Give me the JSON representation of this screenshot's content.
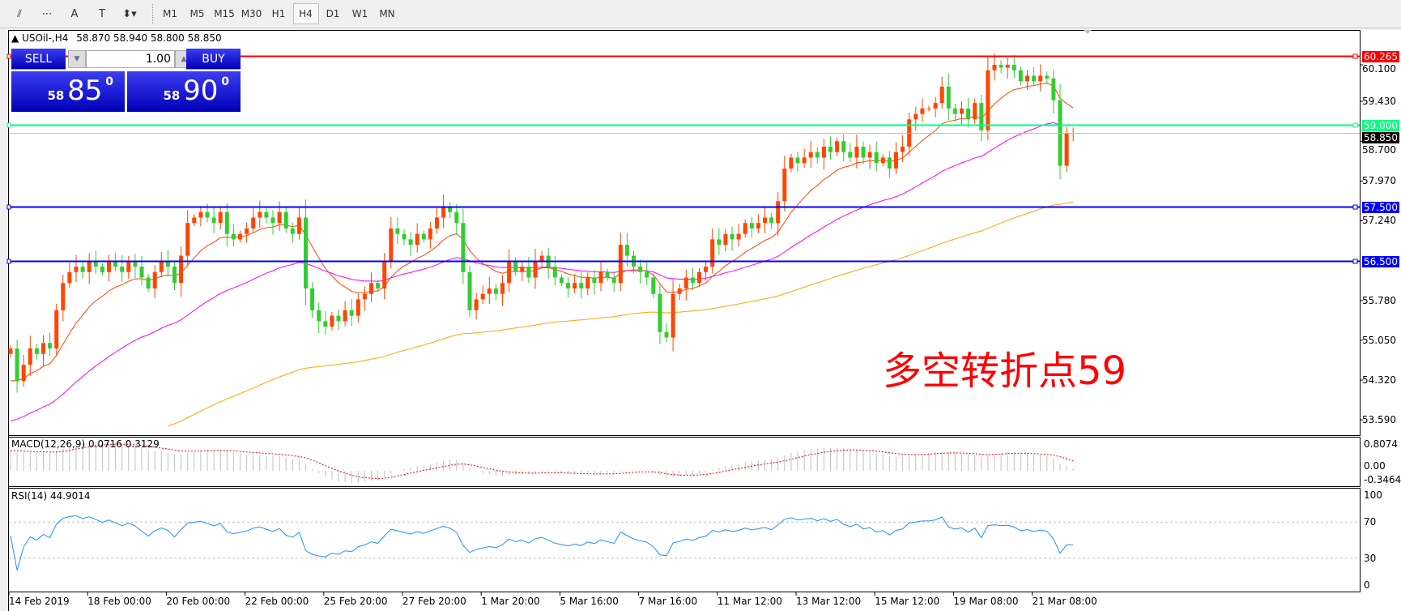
{
  "toolbar": {
    "tools": [
      {
        "icon": "fibonacci-expansion-icon",
        "glyph": "⫽"
      },
      {
        "icon": "fibonacci-fan-icon",
        "glyph": "⋯"
      },
      {
        "icon": "text-icon",
        "glyph": "A"
      },
      {
        "icon": "text-label-icon",
        "glyph": "T"
      },
      {
        "icon": "arrows-icon",
        "glyph": "⬍▾"
      }
    ],
    "timeframes": [
      "M1",
      "M5",
      "M15",
      "M30",
      "H1",
      "H4",
      "D1",
      "W1",
      "MN"
    ],
    "active_timeframe": "H4"
  },
  "header": {
    "symbol": "USOil-,H4",
    "ohlc": "58.870 58.940 58.800 58.850"
  },
  "trade_panel": {
    "sell_label": "SELL",
    "buy_label": "BUY",
    "volume": "1.00",
    "sell_big": "58",
    "sell_main": "85",
    "sell_sup": "0",
    "buy_big": "58",
    "buy_main": "90",
    "buy_sup": "0"
  },
  "annotation": "多空转折点59",
  "colors": {
    "bull": "#ff4500",
    "bear": "#32cd32",
    "resistance": "#ff0000",
    "pivot": "#00ff7f",
    "support": "#0000ff",
    "ma_fast": "#ff4500",
    "ma_mid": "#ff00ff",
    "ma_slow": "#ffa500",
    "rsi": "#1e90ff",
    "macd_signal": "#ff0000",
    "macd_hist": "#c0c0c0"
  },
  "chart_data": {
    "type": "candlestick",
    "symbol": "USOil-",
    "timeframe": "H4",
    "closes": [
      54.9,
      54.3,
      54.6,
      54.9,
      54.8,
      55.0,
      54.9,
      55.6,
      56.1,
      56.3,
      56.4,
      56.3,
      56.5,
      56.4,
      56.3,
      56.5,
      56.4,
      56.3,
      56.5,
      56.4,
      56.2,
      56.0,
      56.3,
      56.5,
      56.4,
      56.1,
      56.6,
      57.2,
      57.3,
      57.4,
      57.3,
      57.2,
      57.4,
      57.0,
      56.9,
      57.0,
      57.1,
      57.3,
      57.4,
      57.3,
      57.2,
      57.4,
      57.1,
      57.0,
      57.3,
      56.0,
      55.6,
      55.4,
      55.3,
      55.5,
      55.4,
      55.6,
      55.5,
      55.8,
      55.9,
      56.1,
      56.0,
      56.5,
      57.1,
      57.0,
      56.9,
      56.8,
      57.0,
      56.9,
      57.1,
      57.3,
      57.5,
      57.4,
      57.2,
      56.3,
      55.6,
      55.8,
      55.9,
      56.0,
      55.9,
      56.1,
      56.5,
      56.3,
      56.4,
      56.2,
      56.5,
      56.6,
      56.4,
      56.2,
      56.1,
      56.0,
      56.1,
      56.0,
      56.2,
      56.1,
      56.3,
      56.2,
      56.1,
      56.8,
      56.6,
      56.4,
      56.3,
      56.2,
      55.9,
      55.2,
      55.1,
      55.9,
      56.0,
      56.2,
      56.1,
      56.3,
      56.4,
      56.9,
      56.8,
      57.0,
      56.9,
      57.0,
      57.2,
      57.1,
      57.2,
      57.3,
      57.2,
      57.6,
      58.2,
      58.4,
      58.3,
      58.4,
      58.5,
      58.4,
      58.6,
      58.5,
      58.7,
      58.5,
      58.4,
      58.6,
      58.4,
      58.5,
      58.3,
      58.4,
      58.2,
      58.5,
      58.6,
      59.1,
      59.2,
      59.3,
      59.3,
      59.4,
      59.7,
      59.3,
      59.2,
      59.3,
      59.1,
      59.4,
      58.9,
      60.0,
      60.1,
      60.05,
      60.1,
      60.0,
      59.8,
      59.9,
      59.8,
      59.9,
      59.85,
      59.45,
      58.25,
      58.85,
      58.85
    ],
    "price_ticks": [
      "60.100",
      "59.430",
      "58.700",
      "57.970",
      "57.240",
      "55.780",
      "55.050",
      "54.320",
      "53.590"
    ],
    "price_range": [
      53.3,
      60.55
    ],
    "time_labels": [
      "14 Feb 2019",
      "18 Feb 00:00",
      "20 Feb 00:00",
      "22 Feb 00:00",
      "25 Feb 20:00",
      "27 Feb 20:00",
      "1 Mar 20:00",
      "5 Mar 16:00",
      "7 Mar 16:00",
      "11 Mar 12:00",
      "13 Mar 12:00",
      "15 Mar 12:00",
      "19 Mar 08:00",
      "21 Mar 08:00"
    ],
    "hlines": [
      {
        "price": 60.265,
        "label": "60.265",
        "role": "resistance"
      },
      {
        "price": 59.0,
        "label": "59.000",
        "role": "pivot"
      },
      {
        "price": 57.5,
        "label": "57.500",
        "role": "support"
      },
      {
        "price": 56.5,
        "label": "56.500",
        "role": "support"
      }
    ],
    "current_price": {
      "price": 58.85,
      "label": "58.850"
    },
    "macd": {
      "label": "MACD(12,26,9) 0.0716 0.3129",
      "ticks": [
        "0.8074",
        "0.00",
        "-0.3464"
      ],
      "range": [
        -0.3464,
        0.8074
      ]
    },
    "rsi": {
      "label": "RSI(14) 44.9014",
      "ticks": [
        "100",
        "70",
        "30",
        "0"
      ],
      "levels": [
        70,
        30
      ]
    }
  }
}
